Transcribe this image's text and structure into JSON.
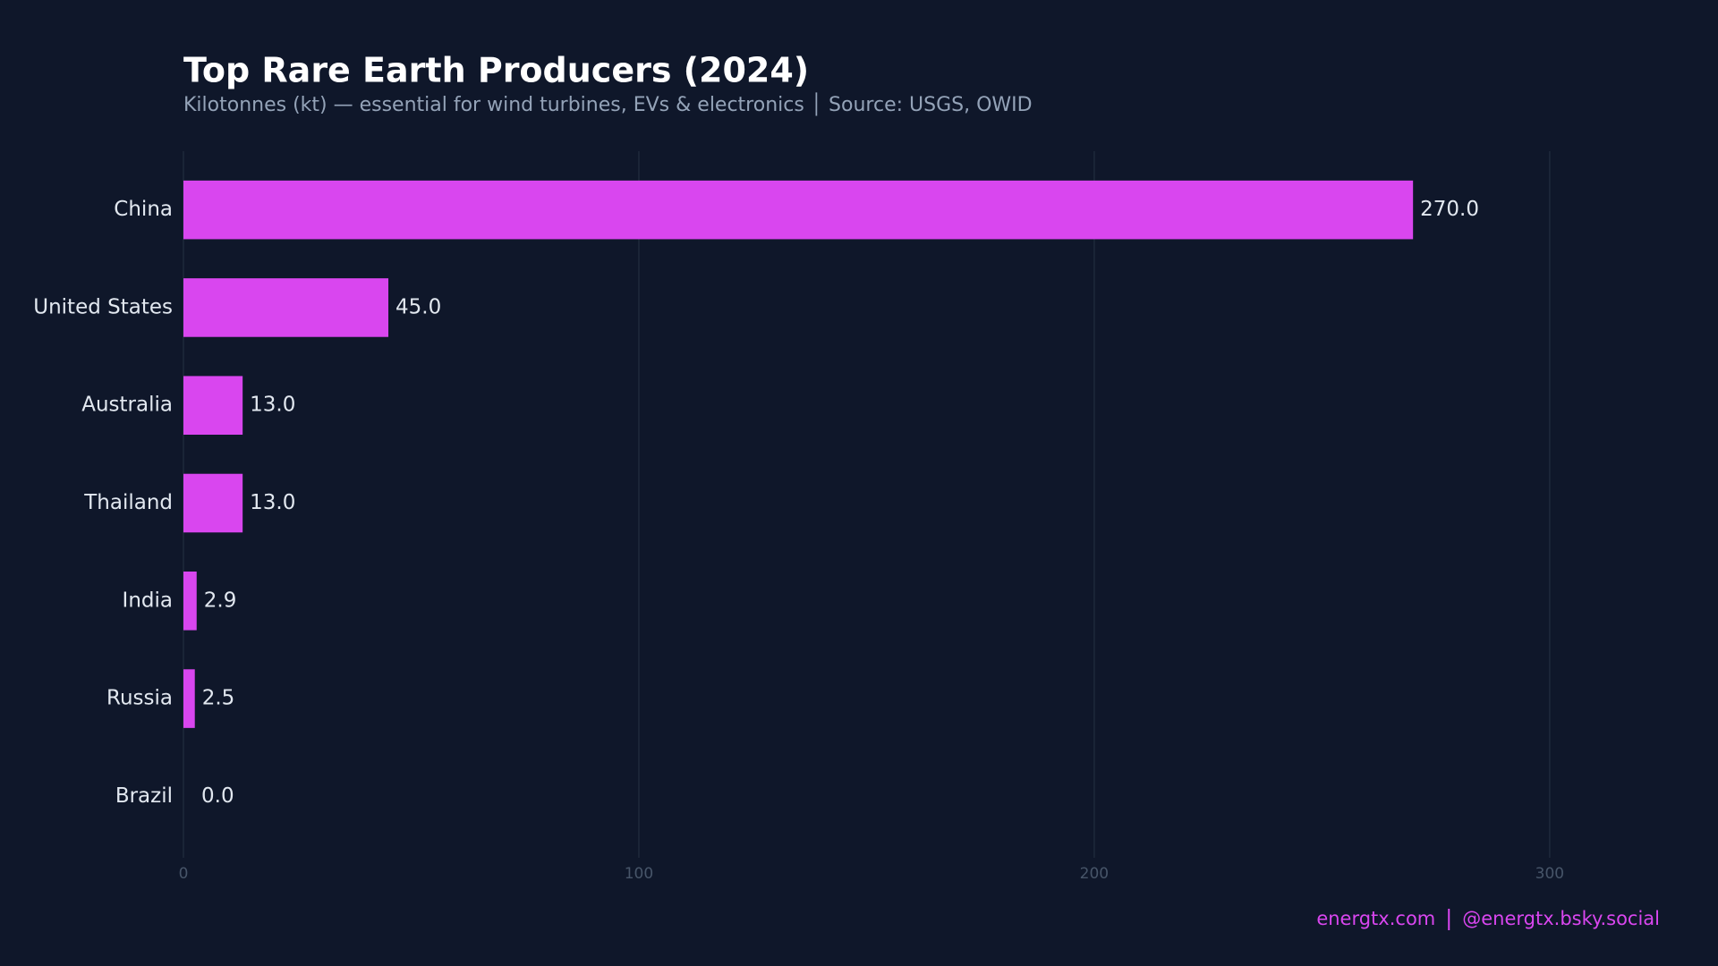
{
  "chart_data": {
    "type": "bar",
    "orientation": "horizontal",
    "title": "Top Rare Earth Producers (2024)",
    "subtitle": "Kilotonnes (kt) — essential for wind turbines, EVs & electronics │ Source: USGS, OWID",
    "categories": [
      "China",
      "United States",
      "Australia",
      "Thailand",
      "India",
      "Russia",
      "Brazil"
    ],
    "values": [
      270,
      45,
      13,
      13,
      2.9,
      2.5,
      0
    ],
    "value_labels": [
      "270.0",
      "45.0",
      "13.0",
      "13.0",
      "2.9",
      "2.5",
      "0.0"
    ],
    "color": "#d946ef",
    "xlim": [
      0,
      324
    ],
    "xticks": [
      0,
      100,
      200,
      300
    ],
    "grid": true,
    "footer": [
      "energtx.com",
      "@energtx.bsky.social"
    ]
  }
}
